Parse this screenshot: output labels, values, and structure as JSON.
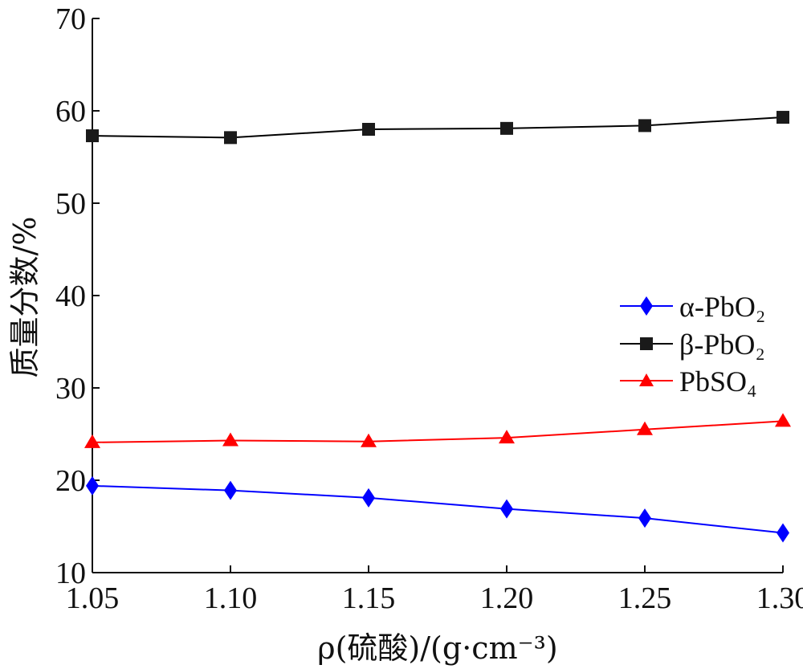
{
  "chart_data": {
    "type": "line",
    "xlabel": "ρ(硫酸)/(g·cm⁻³)",
    "ylabel": "质量分数/%",
    "x": [
      1.05,
      1.1,
      1.15,
      1.2,
      1.25,
      1.3
    ],
    "x_tick_labels": [
      "1.05",
      "1.10",
      "1.15",
      "1.20",
      "1.25",
      "1.30"
    ],
    "xlim": [
      1.05,
      1.3
    ],
    "ylim": [
      10,
      70
    ],
    "y_ticks": [
      10,
      20,
      30,
      40,
      50,
      60,
      70
    ],
    "y_tick_labels": [
      "10",
      "20",
      "30",
      "40",
      "50",
      "60",
      "70"
    ],
    "grid": false,
    "legend_position": "right",
    "series": [
      {
        "name": "α-PbO₂",
        "marker": "diamond",
        "color": "#0000ff",
        "values": [
          19.4,
          18.9,
          18.1,
          16.9,
          15.9,
          14.3
        ]
      },
      {
        "name": "β-PbO₂",
        "marker": "square",
        "color": "#000000",
        "values": [
          57.3,
          57.1,
          58.0,
          58.1,
          58.4,
          59.3
        ]
      },
      {
        "name": "PbSO₄",
        "marker": "triangle",
        "color": "#ff0000",
        "values": [
          24.1,
          24.3,
          24.2,
          24.6,
          25.5,
          26.4
        ]
      }
    ]
  }
}
